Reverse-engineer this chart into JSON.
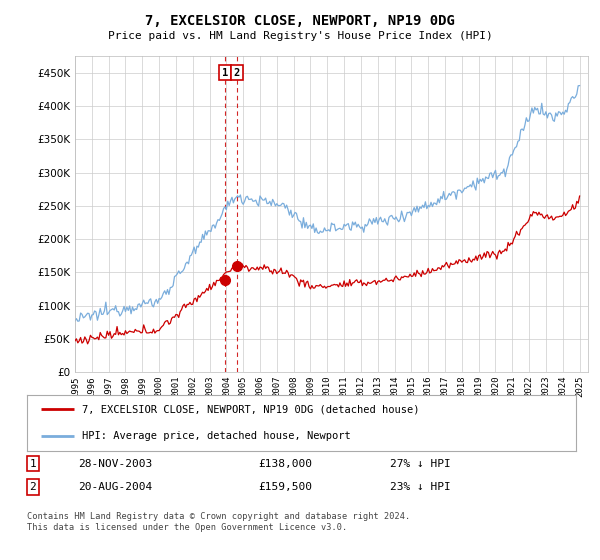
{
  "title": "7, EXCELSIOR CLOSE, NEWPORT, NP19 0DG",
  "subtitle": "Price paid vs. HM Land Registry's House Price Index (HPI)",
  "footer": "Contains HM Land Registry data © Crown copyright and database right 2024.\nThis data is licensed under the Open Government Licence v3.0.",
  "legend_line1": "7, EXCELSIOR CLOSE, NEWPORT, NP19 0DG (detached house)",
  "legend_line2": "HPI: Average price, detached house, Newport",
  "transaction1_num": "1",
  "transaction1_date": "28-NOV-2003",
  "transaction1_price": "£138,000",
  "transaction1_hpi": "27% ↓ HPI",
  "transaction2_num": "2",
  "transaction2_date": "20-AUG-2004",
  "transaction2_price": "£159,500",
  "transaction2_hpi": "23% ↓ HPI",
  "ylim_min": 0,
  "ylim_max": 475000,
  "hpi_color": "#7aaddc",
  "price_color": "#cc0000",
  "dashed_line_color": "#cc0000",
  "grid_color": "#cccccc",
  "background_color": "#ffffff",
  "transaction1_year": 2003.91,
  "transaction2_year": 2004.63,
  "transaction1_price_val": 138000,
  "transaction2_price_val": 159500
}
